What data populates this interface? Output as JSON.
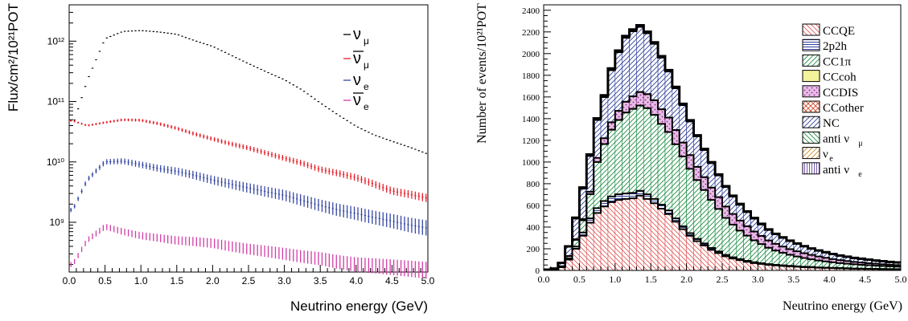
{
  "chart_data": [
    {
      "type": "scatter",
      "ylabel": "Flux/cm²/10²¹POT",
      "xlabel": "Neutrino energy (GeV)",
      "x_axis": {
        "min": 0,
        "max": 5,
        "ticks": [
          "0.0",
          "0.5",
          "1.0",
          "1.5",
          "2.0",
          "2.5",
          "3.0",
          "3.5",
          "4.0",
          "4.5",
          "5.0"
        ]
      },
      "y_axis": {
        "scale": "log",
        "min": 150000000.0,
        "max": 4000000000000.0,
        "ticks": [
          "10⁹",
          "10¹⁰",
          "10¹¹",
          "10¹²"
        ]
      },
      "legend": {
        "placement": "top-right"
      },
      "x": [
        0.05,
        0.25,
        0.5,
        0.75,
        1.0,
        1.25,
        1.5,
        1.75,
        2.0,
        2.25,
        2.5,
        2.75,
        3.0,
        3.25,
        3.5,
        3.75,
        4.0,
        4.25,
        4.5,
        4.75,
        5.0
      ],
      "series": [
        {
          "name": "ν_μ",
          "label_main": "ν",
          "label_sub": "μ",
          "bar": false,
          "color": "#000000",
          "values": [
            40000000000.0,
            220000000000.0,
            1100000000000.0,
            1450000000000.0,
            1500000000000.0,
            1420000000000.0,
            1300000000000.0,
            1020000000000.0,
            820000000000.0,
            590000000000.0,
            425000000000.0,
            310000000000.0,
            230000000000.0,
            155000000000.0,
            95000000000.0,
            60000000000.0,
            39000000000.0,
            28000000000.0,
            22000000000.0,
            17500000000.0,
            13500000000.0
          ]
        },
        {
          "name": "anti ν_μ",
          "label_main": "ν",
          "label_sub": "μ",
          "bar": true,
          "color": "#e8202a",
          "values": [
            48000000000.0,
            40000000000.0,
            45000000000.0,
            50000000000.0,
            49000000000.0,
            43000000000.0,
            36000000000.0,
            29000000000.0,
            24000000000.0,
            20000000000.0,
            17000000000.0,
            14000000000.0,
            11500000000.0,
            9500000000.0,
            7500000000.0,
            6500000000.0,
            5500000000.0,
            4300000000.0,
            3300000000.0,
            2900000000.0,
            2500000000.0
          ]
        },
        {
          "name": "ν_e",
          "label_main": "ν",
          "label_sub": "e",
          "bar": false,
          "color": "#3748a3",
          "values": [
            1600000000.0,
            5000000000.0,
            10000000000.0,
            10300000000.0,
            9000000000.0,
            7800000000.0,
            7000000000.0,
            6000000000.0,
            5000000000.0,
            4300000000.0,
            3700000000.0,
            3200000000.0,
            2800000000.0,
            2300000000.0,
            1900000000.0,
            1600000000.0,
            1400000000.0,
            1200000000.0,
            1050000000.0,
            900000000.0,
            800000000.0
          ]
        },
        {
          "name": "anti ν_e",
          "label_main": "ν",
          "label_sub": "e",
          "bar": true,
          "color": "#d23ba6",
          "values": [
            200000000.0,
            500000000.0,
            850000000.0,
            700000000.0,
            600000000.0,
            550000000.0,
            500000000.0,
            480000000.0,
            450000000.0,
            400000000.0,
            360000000.0,
            330000000.0,
            300000000.0,
            270000000.0,
            250000000.0,
            220000000.0,
            200000000.0,
            190000000.0,
            180000000.0,
            170000000.0,
            160000000.0
          ]
        }
      ]
    },
    {
      "type": "bar",
      "stacked": true,
      "ylabel": "Number of events/10²¹POT",
      "xlabel": "Neutrino energy (GeV)",
      "x_axis": {
        "min": 0,
        "max": 5,
        "ticks": [
          "0.0",
          "0.5",
          "1.0",
          "1.5",
          "2.0",
          "2.5",
          "3.0",
          "3.5",
          "4.0",
          "4.5",
          "5.0"
        ]
      },
      "y_axis": {
        "min": 0,
        "max": 2450,
        "ticks": [
          "0",
          "200",
          "400",
          "600",
          "800",
          "1000",
          "1200",
          "1400",
          "1600",
          "1800",
          "2000",
          "2200",
          "2400"
        ]
      },
      "legend": {
        "placement": "top-right"
      },
      "bin_edges": [
        0.0,
        0.1,
        0.2,
        0.3,
        0.4,
        0.5,
        0.6,
        0.7,
        0.8,
        0.9,
        1.0,
        1.1,
        1.2,
        1.3,
        1.4,
        1.5,
        1.6,
        1.7,
        1.8,
        1.9,
        2.0,
        2.1,
        2.2,
        2.3,
        2.4,
        2.5,
        2.6,
        2.7,
        2.8,
        2.9,
        3.0,
        3.1,
        3.2,
        3.3,
        3.4,
        3.5,
        3.6,
        3.7,
        3.8,
        3.9,
        4.0,
        4.1,
        4.2,
        4.3,
        4.4,
        4.5,
        4.6,
        4.7,
        4.8,
        4.9,
        5.0
      ],
      "series": [
        {
          "name": "CCQE",
          "legend_main": "CCQE",
          "legend_sub": "",
          "pattern": "bk",
          "color": "#e25a5a",
          "bg": "#ffffff",
          "values": [
            5,
            10,
            30,
            100,
            200,
            320,
            440,
            530,
            590,
            630,
            650,
            660,
            665,
            690,
            660,
            620,
            570,
            520,
            450,
            380,
            320,
            270,
            230,
            190,
            160,
            130,
            110,
            95,
            80,
            68,
            60,
            52,
            46,
            42,
            38,
            34,
            30,
            28,
            25,
            23,
            21,
            19,
            18,
            16,
            15,
            14,
            13,
            12,
            11,
            10
          ]
        },
        {
          "name": "2p2h",
          "legend_main": "2p2h",
          "legend_sub": "",
          "pattern": "hz",
          "color": "#2f3f9a",
          "bg": "#ffffff",
          "values": [
            0,
            0,
            3,
            10,
            20,
            30,
            40,
            45,
            50,
            52,
            52,
            50,
            50,
            45,
            42,
            40,
            37,
            33,
            30,
            27,
            24,
            21,
            19,
            17,
            15,
            13,
            11,
            10,
            9,
            8,
            7,
            6,
            6,
            5,
            5,
            4,
            4,
            4,
            3,
            3,
            3,
            3,
            2,
            2,
            2,
            2,
            2,
            2,
            2,
            2
          ]
        },
        {
          "name": "CC1π",
          "legend_main": "CC1π",
          "legend_sub": "",
          "pattern": "fw",
          "color": "#1f8f45",
          "bg": "#ffffff",
          "values": [
            0,
            0,
            5,
            20,
            60,
            110,
            220,
            420,
            520,
            610,
            680,
            740,
            770,
            780,
            790,
            770,
            740,
            720,
            680,
            640,
            590,
            540,
            490,
            440,
            390,
            340,
            300,
            260,
            230,
            200,
            175,
            150,
            130,
            115,
            100,
            90,
            80,
            70,
            63,
            56,
            50,
            45,
            41,
            37,
            34,
            31,
            28,
            26,
            24,
            22
          ]
        },
        {
          "name": "CCcoh",
          "legend_main": "CCcoh",
          "legend_sub": "",
          "pattern": "solid",
          "color": "#f4f29a",
          "bg": "#f4f29a",
          "values": [
            0,
            0,
            0,
            1,
            2,
            3,
            4,
            5,
            6,
            6,
            6,
            6,
            6,
            6,
            5,
            5,
            5,
            4,
            4,
            4,
            3,
            3,
            3,
            3,
            2,
            2,
            2,
            2,
            2,
            2,
            1,
            1,
            1,
            1,
            1,
            1,
            1,
            1,
            1,
            1,
            1,
            1,
            1,
            1,
            1,
            1,
            1,
            1,
            1,
            1
          ]
        },
        {
          "name": "CCDIS",
          "legend_main": "CCDIS",
          "legend_sub": "",
          "pattern": "dots",
          "color": "#8e2a8c",
          "bg": "#e7bde6",
          "values": [
            0,
            0,
            0,
            2,
            5,
            10,
            20,
            35,
            50,
            65,
            80,
            95,
            110,
            120,
            125,
            130,
            130,
            128,
            126,
            124,
            122,
            118,
            114,
            110,
            105,
            100,
            95,
            90,
            84,
            78,
            72,
            66,
            60,
            55,
            50,
            46,
            42,
            38,
            35,
            32,
            29,
            26,
            24,
            22,
            20,
            18,
            17,
            15,
            14,
            13
          ]
        },
        {
          "name": "CCother",
          "legend_main": "CCother",
          "legend_sub": "",
          "pattern": "xh",
          "color": "#d04a2a",
          "bg": "#ffffff",
          "values": [
            0,
            0,
            0,
            0,
            1,
            1,
            2,
            3,
            3,
            4,
            4,
            5,
            5,
            5,
            5,
            5,
            5,
            5,
            5,
            5,
            5,
            4,
            4,
            4,
            4,
            4,
            3,
            3,
            3,
            3,
            3,
            2,
            2,
            2,
            2,
            2,
            2,
            2,
            2,
            2,
            1,
            1,
            1,
            1,
            1,
            1,
            1,
            1,
            1,
            1
          ]
        },
        {
          "name": "NC",
          "legend_main": "NC",
          "legend_sub": "",
          "pattern": "fw",
          "color": "#2f3f9a",
          "bg": "#ffffff",
          "values": [
            2,
            8,
            30,
            85,
            190,
            280,
            330,
            350,
            380,
            480,
            540,
            590,
            600,
            600,
            560,
            520,
            475,
            425,
            385,
            345,
            310,
            280,
            250,
            225,
            200,
            180,
            160,
            145,
            130,
            118,
            106,
            96,
            88,
            80,
            74,
            68,
            62,
            57,
            52,
            48,
            44,
            40,
            37,
            34,
            32,
            30,
            28,
            26,
            24,
            23
          ]
        },
        {
          "name": "anti ν_μ",
          "legend_main": "anti ν",
          "legend_sub": "μ",
          "pattern": "bk",
          "color": "#1f8f45",
          "bg": "#ffffff",
          "values": [
            0,
            0,
            1,
            3,
            6,
            8,
            10,
            11,
            12,
            12,
            12,
            12,
            12,
            11,
            11,
            10,
            10,
            9,
            9,
            8,
            8,
            7,
            7,
            6,
            6,
            5,
            5,
            5,
            4,
            4,
            4,
            3,
            3,
            3,
            3,
            3,
            2,
            2,
            2,
            2,
            2,
            2,
            2,
            2,
            2,
            2,
            1,
            1,
            1,
            1
          ]
        },
        {
          "name": "ν_e",
          "legend_main": "ν",
          "legend_sub": "e",
          "pattern": "fw",
          "color": "#c98a2a",
          "bg": "#ffffff",
          "values": [
            0,
            0,
            0,
            1,
            2,
            2,
            3,
            3,
            3,
            3,
            3,
            3,
            3,
            3,
            3,
            3,
            3,
            3,
            3,
            3,
            2,
            2,
            2,
            2,
            2,
            2,
            2,
            2,
            2,
            2,
            1,
            1,
            1,
            1,
            1,
            1,
            1,
            1,
            1,
            1,
            1,
            1,
            1,
            1,
            1,
            1,
            1,
            1,
            1,
            1
          ]
        },
        {
          "name": "anti ν_e",
          "legend_main": "anti ν",
          "legend_sub": "e",
          "pattern": "vt",
          "color": "#6a4aa8",
          "bg": "#ffffff",
          "values": [
            0,
            0,
            0,
            0,
            1,
            1,
            1,
            1,
            1,
            1,
            1,
            1,
            1,
            1,
            1,
            1,
            1,
            1,
            1,
            1,
            1,
            1,
            1,
            1,
            1,
            1,
            1,
            1,
            1,
            1,
            1,
            1,
            1,
            1,
            1,
            0,
            0,
            0,
            0,
            0,
            0,
            0,
            0,
            0,
            0,
            0,
            0,
            0,
            0,
            0
          ]
        }
      ],
      "outline_boundaries": [
        "CCQE",
        "2p2h",
        "CCcoh",
        "CCother",
        "NC"
      ]
    }
  ]
}
